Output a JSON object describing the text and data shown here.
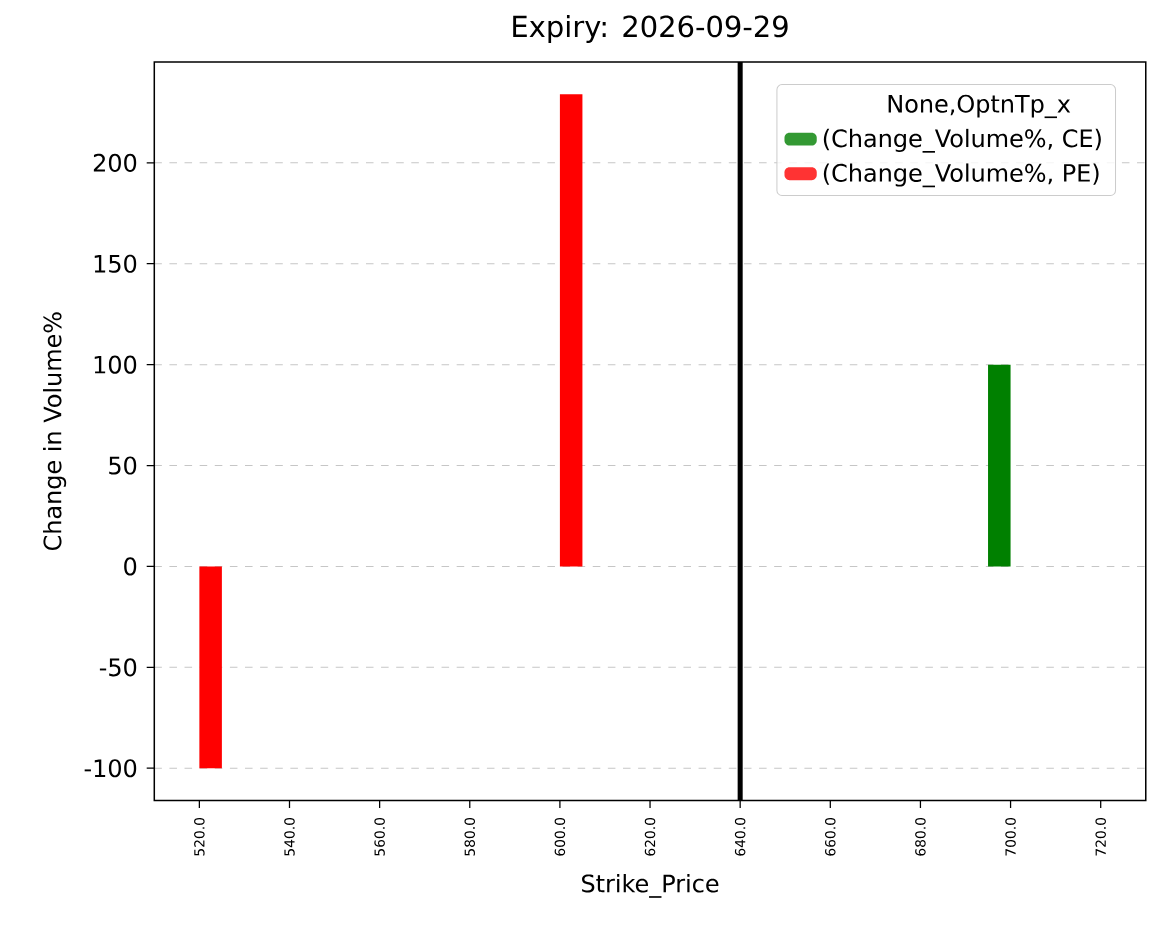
{
  "chart_data": {
    "type": "bar",
    "title": "Expiry: 2026-09-29",
    "xlabel": "Strike_Price",
    "ylabel": "Change in Volume%",
    "legend_title": "None,OptnTp_x",
    "categories": [
      "520.0",
      "540.0",
      "560.0",
      "580.0",
      "600.0",
      "620.0",
      "640.0",
      "660.0",
      "680.0",
      "700.0",
      "720.0"
    ],
    "series": [
      {
        "name": "(Change_Volume%, CE)",
        "color": "#008000",
        "values": [
          null,
          null,
          null,
          null,
          null,
          null,
          null,
          null,
          null,
          100,
          null
        ]
      },
      {
        "name": "(Change_Volume%, PE)",
        "color": "#ff0000",
        "values": [
          -100,
          null,
          null,
          null,
          234,
          null,
          null,
          null,
          null,
          null,
          null
        ]
      }
    ],
    "ylim": [
      -116,
      250
    ],
    "yticks": [
      -100,
      -50,
      0,
      50,
      100,
      150,
      200
    ],
    "grid": "y",
    "legend": "top right",
    "ref_lines": [
      {
        "axis": "x",
        "value": "640.0",
        "color": "#000000"
      }
    ]
  }
}
